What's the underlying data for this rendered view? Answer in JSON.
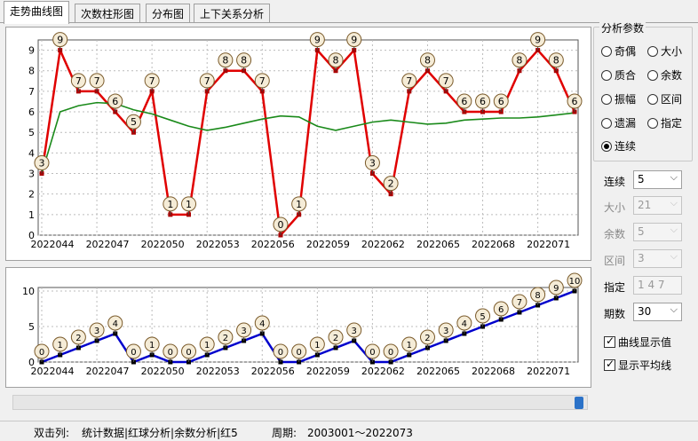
{
  "tabs": [
    "走势曲线图",
    "次数柱形图",
    "分布图",
    "上下关系分析"
  ],
  "active_tab": 0,
  "params": {
    "title": "分析参数",
    "options": [
      "奇偶",
      "大小",
      "质合",
      "余数",
      "振幅",
      "区间",
      "遗漏",
      "指定",
      "连续"
    ],
    "selected": "连续"
  },
  "settings": {
    "lianxu": {
      "label": "连续",
      "value": "5"
    },
    "daxiao": {
      "label": "大小",
      "value": "21"
    },
    "yushu": {
      "label": "余数",
      "value": "5"
    },
    "qujian": {
      "label": "区间",
      "value": "3"
    },
    "zhiding": {
      "label": "指定",
      "value": "1 4 7"
    },
    "qishu": {
      "label": "期数",
      "value": "30"
    }
  },
  "checkboxes": {
    "show_values": {
      "label": "曲线显示值",
      "checked": true
    },
    "show_avg": {
      "label": "显示平均线",
      "checked": true
    }
  },
  "status": {
    "col_label": "双击列:",
    "col_value": "统计数据|红球分析|余数分析|红5",
    "period_label": "周期:",
    "period_value": "2003001～2022073"
  },
  "colors": {
    "main_line": "#e00000",
    "avg_line": "#1a8a1a",
    "bottom_line": "#0000cc",
    "marker_fill": "#f5ecd7"
  },
  "chart_data": [
    {
      "type": "line",
      "x_tick_labels": [
        "2022044",
        "2022047",
        "2022050",
        "2022053",
        "2022056",
        "2022059",
        "2022062",
        "2022065",
        "2022068",
        "2022071"
      ],
      "ylim": [
        0,
        9.5
      ],
      "y_ticks": [
        0,
        1,
        2,
        3,
        4,
        5,
        6,
        7,
        8,
        9
      ],
      "grid": true,
      "series": [
        {
          "values": [
            3,
            9,
            7,
            7,
            6,
            5,
            7,
            1,
            1,
            7,
            8,
            8,
            7,
            0,
            1,
            9,
            8,
            9,
            3,
            2,
            7,
            8,
            7,
            6,
            6,
            6,
            8,
            9,
            8,
            6
          ]
        },
        {
          "values": [
            3.0,
            6.0,
            6.3,
            6.45,
            6.4,
            6.1,
            5.9,
            5.6,
            5.3,
            5.1,
            5.25,
            5.45,
            5.65,
            5.8,
            5.75,
            5.3,
            5.1,
            5.3,
            5.5,
            5.6,
            5.5,
            5.4,
            5.45,
            5.6,
            5.65,
            5.7,
            5.7,
            5.75,
            5.85,
            5.95
          ]
        }
      ]
    },
    {
      "type": "line",
      "x_tick_labels": [
        "2022044",
        "2022047",
        "2022050",
        "2022053",
        "2022056",
        "2022059",
        "2022062",
        "2022065",
        "2022068",
        "2022071"
      ],
      "ylim": [
        0,
        10.5
      ],
      "y_ticks": [
        0,
        5,
        10
      ],
      "grid": true,
      "series": [
        {
          "values": [
            0,
            1,
            2,
            3,
            4,
            0,
            1,
            0,
            0,
            1,
            2,
            3,
            4,
            0,
            0,
            1,
            2,
            3,
            0,
            0,
            1,
            2,
            3,
            4,
            5,
            6,
            7,
            8,
            9,
            10
          ]
        }
      ]
    }
  ]
}
